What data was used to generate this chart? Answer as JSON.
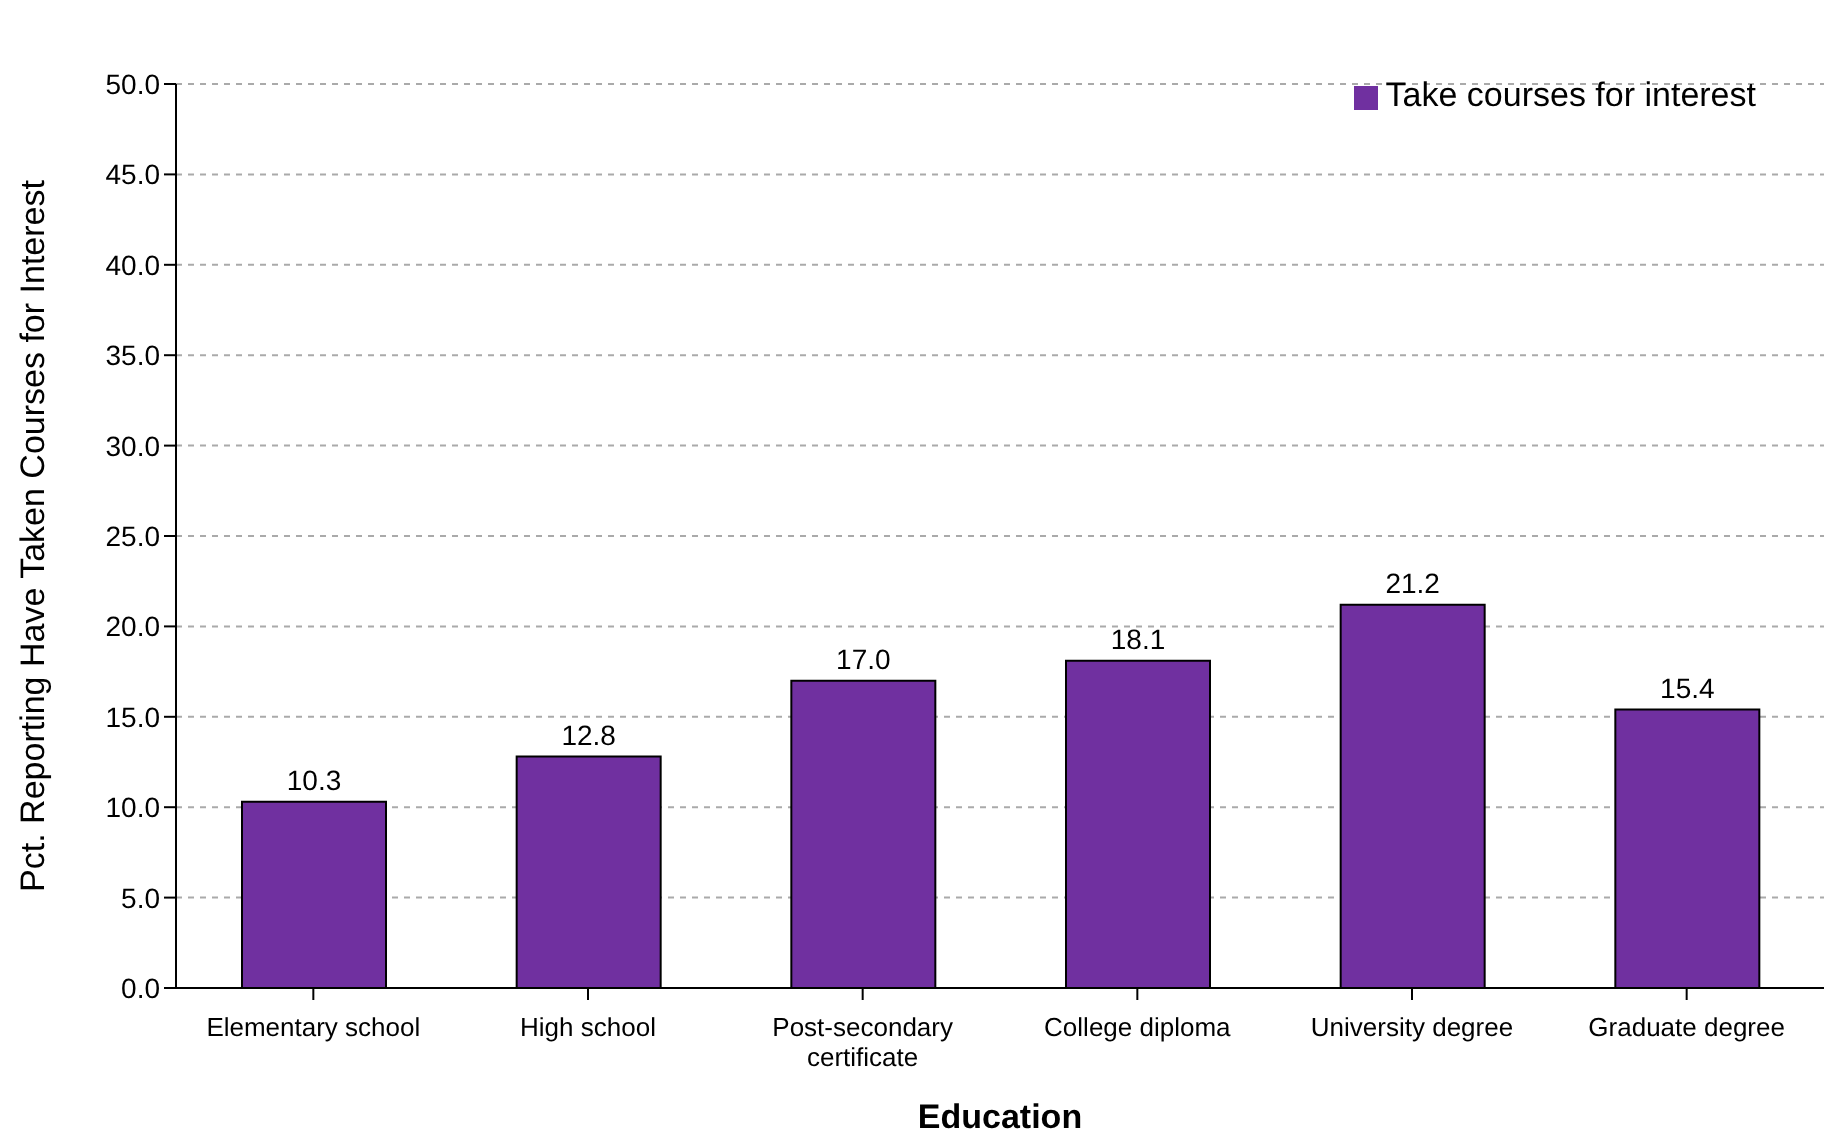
{
  "chart_data": {
    "type": "bar",
    "xlabel": "Education",
    "ylabel": "Pct. Reporting Have Taken Courses for Interest",
    "categories": [
      "Elementary school",
      "High school",
      "Post-secondary certificate",
      "College diploma",
      "University degree",
      "Graduate degree"
    ],
    "series": [
      {
        "name": "Take courses for interest",
        "color": "#7030a0",
        "values": [
          10.3,
          12.8,
          17.0,
          18.1,
          21.2,
          15.4
        ],
        "value_labels": [
          "10.3",
          "12.8",
          "17.0",
          "18.1",
          "21.2",
          "15.4"
        ]
      }
    ],
    "ylim": [
      0,
      50
    ],
    "yticks": [
      {
        "value": 0,
        "label": "0.0"
      },
      {
        "value": 5,
        "label": "5.0"
      },
      {
        "value": 10,
        "label": "10.0"
      },
      {
        "value": 15,
        "label": "15.0"
      },
      {
        "value": 20,
        "label": "20.0"
      },
      {
        "value": 25,
        "label": "25.0"
      },
      {
        "value": 30,
        "label": "30.0"
      },
      {
        "value": 35,
        "label": "35.0"
      },
      {
        "value": 40,
        "label": "40.0"
      },
      {
        "value": 45,
        "label": "45.0"
      },
      {
        "value": 50,
        "label": "50.0"
      }
    ],
    "grid": "y",
    "legend": "top right"
  }
}
